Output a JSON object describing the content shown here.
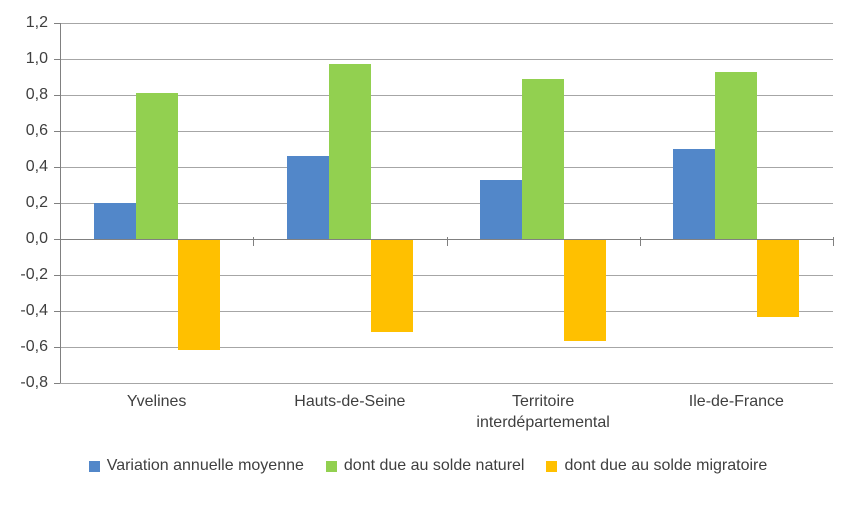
{
  "chart_data": {
    "type": "bar",
    "title": "",
    "xlabel": "",
    "ylabel": "",
    "categories": [
      "Yvelines",
      "Hauts-de-Seine",
      "Territoire interdépartemental",
      "Ile-de-France"
    ],
    "series": [
      {
        "name": "Variation annuelle moyenne",
        "color": "#5287C9",
        "values": [
          0.2,
          0.46,
          0.33,
          0.5
        ]
      },
      {
        "name": "dont due au solde naturel",
        "color": "#92D050",
        "values": [
          0.81,
          0.97,
          0.89,
          0.93
        ]
      },
      {
        "name": "dont due au solde migratoire",
        "color": "#FFC000",
        "values": [
          -0.61,
          -0.51,
          -0.56,
          -0.43
        ]
      }
    ],
    "ylim": [
      -0.8,
      1.2
    ],
    "ytick_step": 0.2,
    "ytick_labels": [
      "1,2",
      "1,0",
      "0,8",
      "0,6",
      "0,4",
      "0,2",
      "0,0",
      "-0,2",
      "-0,4",
      "-0,6",
      "-0,8"
    ],
    "grid": true,
    "legend_position": "bottom"
  },
  "colors": {
    "gridline": "#A6A6A6",
    "axis": "#808080",
    "text": "#3F3F3F",
    "background": "#FFFFFF"
  }
}
